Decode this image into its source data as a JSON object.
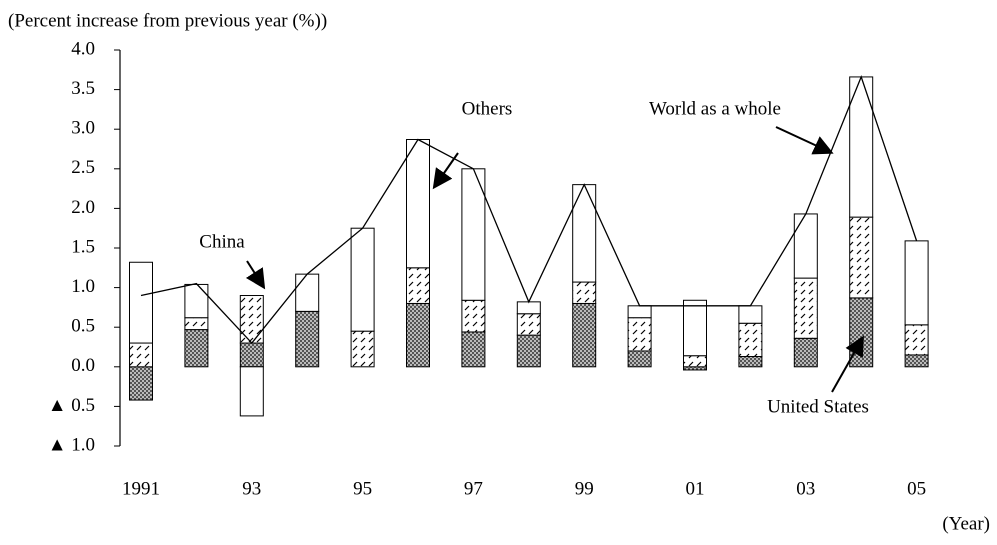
{
  "chart_data": {
    "type": "bar",
    "stacked": true,
    "ylabel": "(Percent increase from previous year (%))",
    "xlabel": "(Year)",
    "categories": [
      "1991",
      null,
      "93",
      null,
      "95",
      null,
      "97",
      null,
      "99",
      null,
      "01",
      null,
      "03",
      null,
      "05"
    ],
    "series": [
      {
        "name": "United States",
        "color": "#444444",
        "fill": "dots",
        "values": [
          -0.42,
          0.47,
          0.3,
          0.7,
          0,
          0.8,
          0.44,
          0.4,
          0.8,
          0.2,
          -0.04,
          0.13,
          0.36,
          0.87,
          0.15
        ]
      },
      {
        "name": "China",
        "color": "#000000",
        "fill": "hatch",
        "values": [
          0.3,
          0.15,
          0.6,
          0,
          0.45,
          0.45,
          0.4,
          0.27,
          0.27,
          0.42,
          0.14,
          0.42,
          0.76,
          1.02,
          0.38
        ]
      },
      {
        "name": "Others",
        "color": "#ffffff",
        "fill": "solid",
        "values": [
          1.02,
          0.42,
          -0.62,
          0.47,
          1.3,
          1.62,
          1.66,
          0.15,
          1.23,
          0.15,
          0.7,
          0.22,
          0.81,
          1.77,
          1.06
        ]
      },
      {
        "name": "World as a whole",
        "type": "line",
        "color": "#000000",
        "values": [
          0.9,
          1.05,
          0.3,
          1.17,
          1.75,
          2.87,
          2.5,
          0.82,
          2.3,
          0.77,
          0.77,
          0.77,
          1.93,
          3.66,
          1.59
        ]
      }
    ],
    "ylim": [
      -1,
      4
    ],
    "yticks": [
      {
        "value": 4,
        "label": "4.0"
      },
      {
        "value": 3.5,
        "label": "3.5"
      },
      {
        "value": 3,
        "label": "3.0"
      },
      {
        "value": 2.5,
        "label": "2.5"
      },
      {
        "value": 2,
        "label": "2.0"
      },
      {
        "value": 1.5,
        "label": "1.5"
      },
      {
        "value": 1,
        "label": "1.0"
      },
      {
        "value": 0.5,
        "label": "0.5"
      },
      {
        "value": 0,
        "label": "0.0"
      },
      {
        "value": -0.5,
        "label": "▲ 0.5"
      },
      {
        "value": -1,
        "label": "▲ 1.0"
      }
    ]
  }
}
